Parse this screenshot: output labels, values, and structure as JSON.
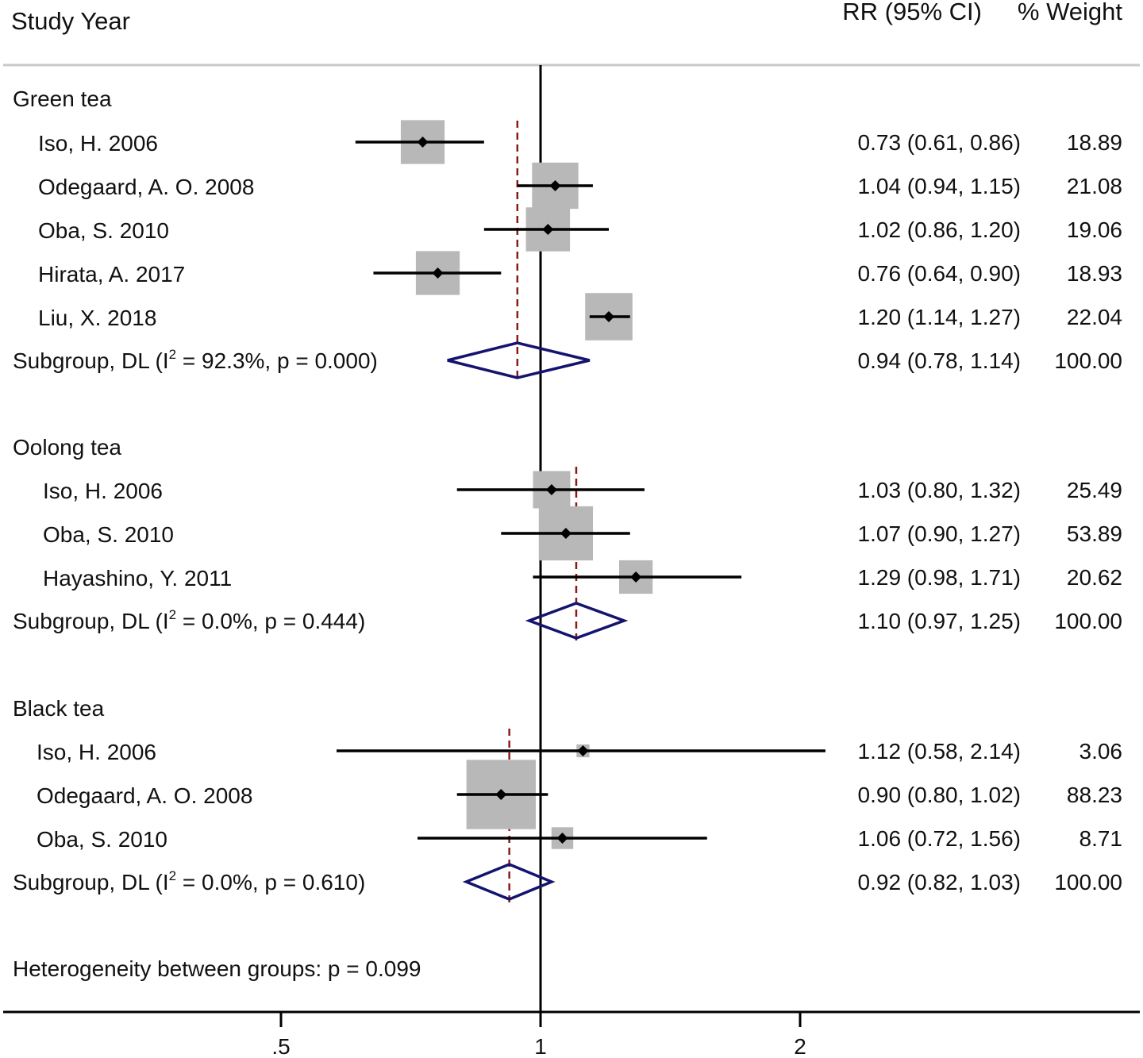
{
  "chart_data": {
    "type": "forest",
    "header": {
      "study_label": "Study Year",
      "effect_label": "RR (95% CI)",
      "weight_label": "% Weight"
    },
    "x_axis": {
      "scale": "log",
      "ticks": [
        {
          "value": 0.5,
          "label": ".5"
        },
        {
          "value": 1,
          "label": "1"
        },
        {
          "value": 2,
          "label": "2"
        }
      ],
      "null_line": 1
    },
    "groups": [
      {
        "name": "Green tea",
        "studies": [
          {
            "study": "Iso, H. 2006",
            "rr": 0.73,
            "lo": 0.61,
            "hi": 0.86,
            "ci_text": "0.73 (0.61, 0.86)",
            "weight": 18.89,
            "weight_text": "18.89"
          },
          {
            "study": "Odegaard, A. O. 2008",
            "rr": 1.04,
            "lo": 0.94,
            "hi": 1.15,
            "ci_text": "1.04 (0.94, 1.15)",
            "weight": 21.08,
            "weight_text": "21.08"
          },
          {
            "study": "Oba, S. 2010",
            "rr": 1.02,
            "lo": 0.86,
            "hi": 1.2,
            "ci_text": "1.02 (0.86, 1.20)",
            "weight": 19.06,
            "weight_text": "19.06"
          },
          {
            "study": "Hirata, A. 2017",
            "rr": 0.76,
            "lo": 0.64,
            "hi": 0.9,
            "ci_text": "0.76 (0.64, 0.90)",
            "weight": 18.93,
            "weight_text": "18.93"
          },
          {
            "study": "Liu, X. 2018",
            "rr": 1.2,
            "lo": 1.14,
            "hi": 1.27,
            "ci_text": "1.20 (1.14, 1.27)",
            "weight": 22.04,
            "weight_text": "22.04"
          }
        ],
        "subgroup": {
          "label_pre": "Subgroup, DL (I",
          "label_sup": "2",
          "label_post": " = 92.3%, p = 0.000)",
          "rr": 0.94,
          "lo": 0.78,
          "hi": 1.14,
          "ci_text": "0.94 (0.78, 1.14)",
          "weight_text": "100.00"
        }
      },
      {
        "name": "Oolong tea",
        "studies": [
          {
            "study": "Iso, H. 2006",
            "rr": 1.03,
            "lo": 0.8,
            "hi": 1.32,
            "ci_text": "1.03 (0.80, 1.32)",
            "weight": 25.49,
            "weight_text": "25.49"
          },
          {
            "study": "Oba, S. 2010",
            "rr": 1.07,
            "lo": 0.9,
            "hi": 1.27,
            "ci_text": "1.07 (0.90, 1.27)",
            "weight": 53.89,
            "weight_text": "53.89"
          },
          {
            "study": "Hayashino, Y. 2011",
            "rr": 1.29,
            "lo": 0.98,
            "hi": 1.71,
            "ci_text": "1.29 (0.98, 1.71)",
            "weight": 20.62,
            "weight_text": "20.62"
          }
        ],
        "subgroup": {
          "label_pre": "Subgroup, DL (I",
          "label_sup": "2",
          "label_post": " = 0.0%, p = 0.444)",
          "rr": 1.1,
          "lo": 0.97,
          "hi": 1.25,
          "ci_text": "1.10 (0.97, 1.25)",
          "weight_text": "100.00"
        }
      },
      {
        "name": "Black tea",
        "studies": [
          {
            "study": "Iso, H. 2006",
            "rr": 1.12,
            "lo": 0.58,
            "hi": 2.14,
            "ci_text": "1.12 (0.58, 2.14)",
            "weight": 3.06,
            "weight_text": "3.06"
          },
          {
            "study": "Odegaard, A. O. 2008",
            "rr": 0.9,
            "lo": 0.8,
            "hi": 1.02,
            "ci_text": "0.90 (0.80, 1.02)",
            "weight": 88.23,
            "weight_text": "88.23"
          },
          {
            "study": "Oba, S. 2010",
            "rr": 1.06,
            "lo": 0.72,
            "hi": 1.56,
            "ci_text": "1.06 (0.72, 1.56)",
            "weight": 8.71,
            "weight_text": "8.71"
          }
        ],
        "subgroup": {
          "label_pre": "Subgroup, DL (I",
          "label_sup": "2",
          "label_post": " = 0.0%, p = 0.610)",
          "rr": 0.92,
          "lo": 0.82,
          "hi": 1.03,
          "ci_text": "0.92 (0.82, 1.03)",
          "weight_text": "100.00"
        }
      }
    ],
    "footer": "Heterogeneity between groups: p = 0.099",
    "colors": {
      "text": "#111111",
      "ci_line": "#000000",
      "weight_box": "#b8b8b8",
      "point": "#000000",
      "diamond": "#14146e",
      "pooled_line": "#8b1a1a",
      "rule": "#c8c8c8"
    }
  }
}
